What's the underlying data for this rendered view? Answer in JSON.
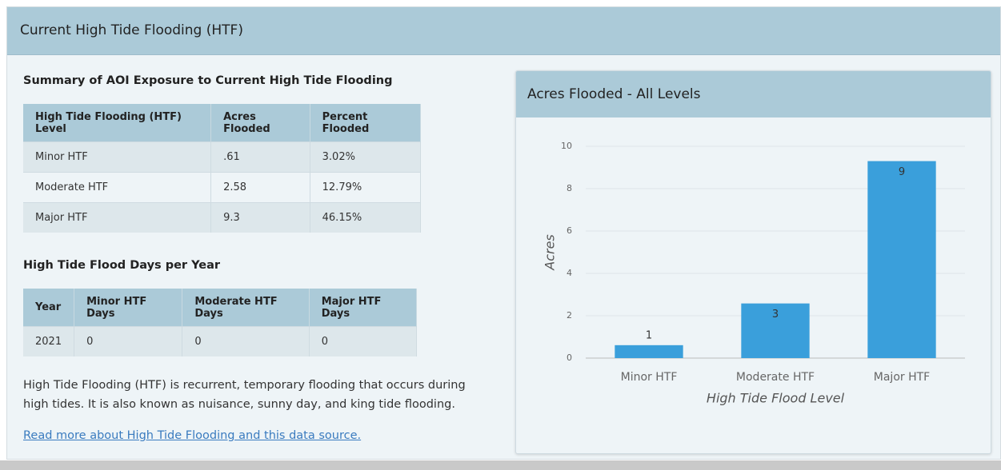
{
  "panel": {
    "title": "Current High Tide Flooding (HTF)"
  },
  "summary": {
    "heading": "Summary of AOI Exposure to Current High Tide Flooding",
    "columns": [
      "High Tide Flooding (HTF) Level",
      "Acres Flooded",
      "Percent Flooded"
    ],
    "rows": [
      [
        "Minor HTF",
        ".61",
        "3.02%"
      ],
      [
        "Moderate HTF",
        "2.58",
        "12.79%"
      ],
      [
        "Major HTF",
        "9.3",
        "46.15%"
      ]
    ]
  },
  "flood_days": {
    "heading": "High Tide Flood Days per Year",
    "columns": [
      "Year",
      "Minor HTF Days",
      "Moderate HTF Days",
      "Major HTF Days"
    ],
    "rows": [
      [
        "2021",
        "0",
        "0",
        "0"
      ]
    ]
  },
  "description": "High Tide Flooding (HTF) is recurrent, temporary flooding that occurs during high tides. It is also known as nuisance, sunny day, and king tide flooding.",
  "link": "Read more about High Tide Flooding and this data source.",
  "chart_data": {
    "type": "bar",
    "title": "Acres Flooded - All Levels",
    "x_label": "High Tide Flood Level",
    "y_label": "Acres",
    "categories": [
      "Minor HTF",
      "Moderate HTF",
      "Major HTF"
    ],
    "values": [
      0.61,
      2.58,
      9.3
    ],
    "value_labels": [
      "1",
      "3",
      "9"
    ],
    "color": "#3a9fdb",
    "ylim": [
      0,
      10
    ],
    "yticks": [
      0,
      2,
      4,
      6,
      8,
      10
    ],
    "grid": true
  }
}
